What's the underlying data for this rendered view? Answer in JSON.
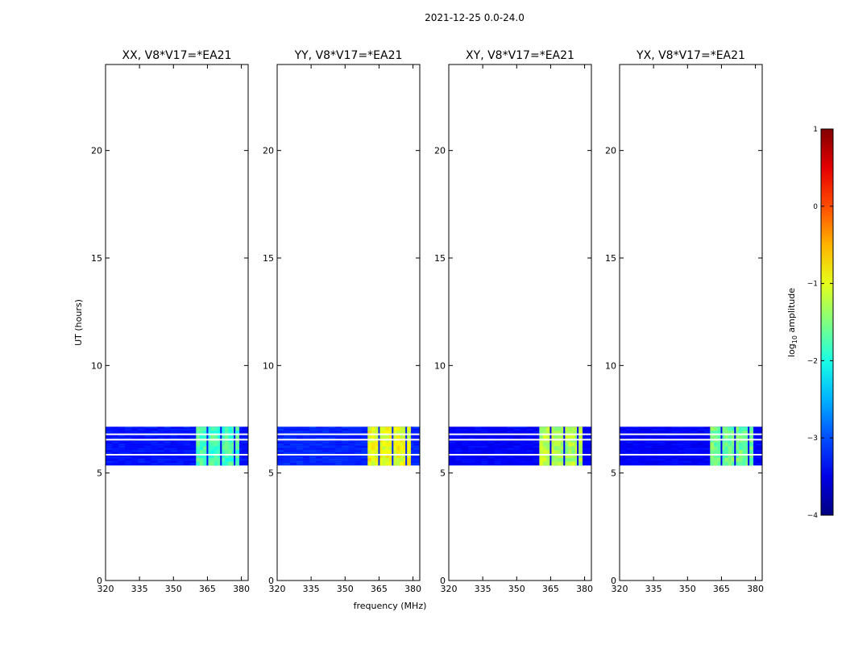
{
  "chart_data": {
    "type": "heatmap",
    "suptitle": "2021-12-25 0.0-24.0",
    "xlabel": "frequency (MHz)",
    "ylabel": "UT (hours)",
    "xlim": [
      320,
      383
    ],
    "ylim": [
      0,
      24
    ],
    "xticks": [
      320,
      335,
      350,
      365,
      380
    ],
    "yticks": [
      0,
      5,
      10,
      15,
      20
    ],
    "data_extent": {
      "ut_start": 5.35,
      "ut_end": 7.15,
      "freq_start": 320,
      "freq_end": 383
    },
    "blank_rows_ut": [
      5.85,
      6.55,
      6.8
    ],
    "high_band_mhz": [
      360,
      379
    ],
    "subband_edges_mhz": [
      365,
      371,
      377
    ],
    "colorbar": {
      "label": "log10 amplitude",
      "label_base": "log",
      "label_sub": "10",
      "label_rest": " amplitude",
      "range": [
        -4,
        1
      ],
      "ticks": [
        -4,
        -3,
        -2,
        -1,
        0,
        1
      ],
      "colormap": "jet"
    },
    "panels": [
      {
        "title": "XX, V8*V17=*EA21",
        "high_band_level": -1.8,
        "background_level": -3.3
      },
      {
        "title": "YY, V8*V17=*EA21",
        "high_band_level": -1.0,
        "background_level": -3.2
      },
      {
        "title": "XY, V8*V17=*EA21",
        "high_band_level": -1.3,
        "background_level": -3.4
      },
      {
        "title": "YX, V8*V17=*EA21",
        "high_band_level": -1.6,
        "background_level": -3.4
      }
    ]
  }
}
